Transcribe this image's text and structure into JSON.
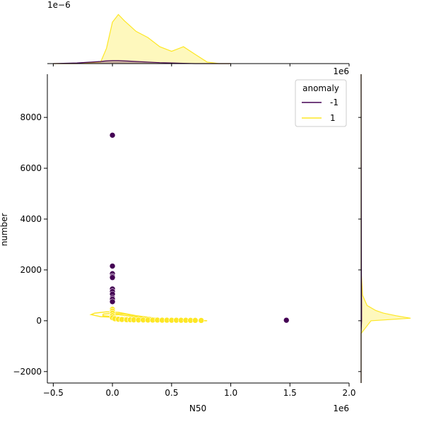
{
  "chart_data": {
    "type": "scatter",
    "title": "",
    "xlabel": "N50",
    "ylabel": "number",
    "x_offset_text": "1e6",
    "y_offset_text": "",
    "top_marginal_offset_text": "1e−6",
    "right_marginal_offset_text": "1e6",
    "xlim": [
      -0.55,
      2.0
    ],
    "ylim": [
      -2450,
      9700
    ],
    "x_ticks": [
      -0.5,
      0.0,
      0.5,
      1.0,
      1.5,
      2.0
    ],
    "x_tick_labels": [
      "−0.5",
      "0.0",
      "0.5",
      "1.0",
      "1.5",
      "2.0"
    ],
    "y_ticks": [
      -2000,
      0,
      2000,
      4000,
      6000,
      8000
    ],
    "y_tick_labels": [
      "−2000",
      "0",
      "2000",
      "4000",
      "6000",
      "8000"
    ],
    "grid": false,
    "legend": {
      "title": "anomaly",
      "placement": "top-right",
      "entries": [
        {
          "label": "-1",
          "color": "#440154"
        },
        {
          "label": "1",
          "color": "#fde725"
        }
      ]
    },
    "series": [
      {
        "name": "-1",
        "color": "#440154",
        "points": [
          [
            0.0,
            7300
          ],
          [
            0.0,
            2150
          ],
          [
            0.0,
            1850
          ],
          [
            0.0,
            1750
          ],
          [
            0.0,
            1700
          ],
          [
            0.0,
            1250
          ],
          [
            0.0,
            1150
          ],
          [
            0.0,
            1050
          ],
          [
            0.0,
            900
          ],
          [
            0.0,
            850
          ],
          [
            0.0,
            750
          ],
          [
            1.47,
            20
          ]
        ]
      },
      {
        "name": "1",
        "color": "#fde725",
        "points": [
          [
            0.0,
            450
          ],
          [
            0.0,
            380
          ],
          [
            0.0,
            300
          ],
          [
            0.0,
            200
          ],
          [
            0.0,
            120
          ],
          [
            0.02,
            80
          ],
          [
            0.05,
            60
          ],
          [
            0.08,
            50
          ],
          [
            0.12,
            40
          ],
          [
            0.15,
            40
          ],
          [
            0.18,
            35
          ],
          [
            0.22,
            30
          ],
          [
            0.26,
            30
          ],
          [
            0.3,
            28
          ],
          [
            0.34,
            25
          ],
          [
            0.38,
            25
          ],
          [
            0.42,
            22
          ],
          [
            0.46,
            22
          ],
          [
            0.5,
            20
          ],
          [
            0.54,
            20
          ],
          [
            0.58,
            18
          ],
          [
            0.62,
            18
          ],
          [
            0.66,
            15
          ],
          [
            0.7,
            15
          ],
          [
            0.75,
            12
          ]
        ]
      }
    ],
    "kde_contours_series_1": [
      [
        [
          -0.15,
          300
        ],
        [
          -0.05,
          350
        ],
        [
          0.05,
          330
        ],
        [
          0.2,
          200
        ],
        [
          0.4,
          80
        ],
        [
          0.6,
          30
        ],
        [
          0.8,
          0
        ],
        [
          0.6,
          -10
        ],
        [
          0.3,
          40
        ],
        [
          0.1,
          120
        ],
        [
          -0.1,
          160
        ],
        [
          -0.18,
          240
        ],
        [
          -0.15,
          300
        ]
      ],
      [
        [
          -0.08,
          260
        ],
        [
          0.0,
          290
        ],
        [
          0.1,
          270
        ],
        [
          0.25,
          150
        ],
        [
          0.45,
          50
        ],
        [
          0.65,
          10
        ],
        [
          0.45,
          20
        ],
        [
          0.2,
          80
        ],
        [
          0.05,
          140
        ],
        [
          -0.08,
          200
        ],
        [
          -0.08,
          260
        ]
      ],
      [
        [
          -0.02,
          220
        ],
        [
          0.05,
          240
        ],
        [
          0.15,
          180
        ],
        [
          0.3,
          80
        ],
        [
          0.15,
          100
        ],
        [
          0.02,
          160
        ],
        [
          -0.02,
          220
        ]
      ]
    ],
    "top_marginal": {
      "x": [
        -0.5,
        -0.3,
        -0.1,
        -0.05,
        0.0,
        0.05,
        0.1,
        0.2,
        0.3,
        0.4,
        0.5,
        0.6,
        0.7,
        0.8,
        0.9,
        1.0
      ],
      "series_1": [
        0,
        0,
        0.05,
        0.5,
        1.35,
        1.6,
        1.4,
        1.05,
        0.85,
        0.55,
        0.4,
        0.55,
        0.3,
        0.05,
        0,
        0
      ],
      "series_neg1": [
        0,
        0.02,
        0.07,
        0.09,
        0.1,
        0.1,
        0.09,
        0.07,
        0.05,
        0.03,
        0.02,
        0.01,
        0,
        0,
        0,
        0
      ],
      "ymax": 1.75
    },
    "right_marginal": {
      "y": [
        -2450,
        -500,
        0,
        100,
        200,
        300,
        400,
        600,
        1000,
        2000,
        9700
      ],
      "series_1": [
        0,
        0,
        0.2,
        1.0,
        0.7,
        0.45,
        0.3,
        0.12,
        0.03,
        0,
        0
      ],
      "series_neg1": [
        0,
        0,
        0.01,
        0.01,
        0.01,
        0.01,
        0.01,
        0.01,
        0.008,
        0.005,
        0
      ],
      "xmax": 1.1
    }
  }
}
